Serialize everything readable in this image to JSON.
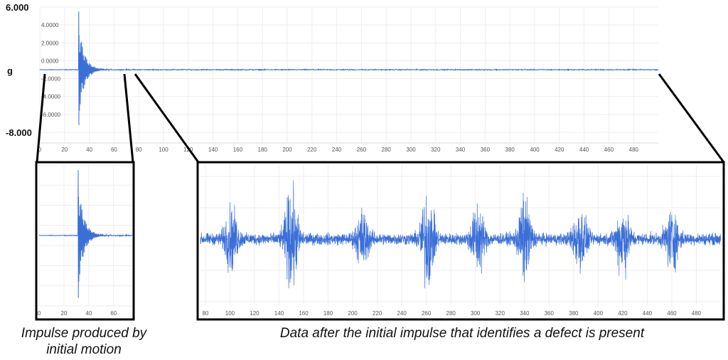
{
  "chart_data": [
    {
      "id": "main",
      "type": "line",
      "ylabel": "g",
      "ylim": [
        -8.0,
        6.0
      ],
      "xlim": [
        0,
        500
      ],
      "x_ticks": [
        0,
        20,
        40,
        60,
        80,
        100,
        120,
        140,
        160,
        180,
        200,
        220,
        240,
        260,
        280,
        300,
        320,
        340,
        360,
        380,
        400,
        420,
        440,
        460,
        480
      ],
      "y_ticks": [
        {
          "value": 6.0,
          "label": "6.000",
          "bold": true
        },
        {
          "value": 4.0,
          "label": "4.0000",
          "bold": false
        },
        {
          "value": 2.0,
          "label": "2.0000",
          "bold": false
        },
        {
          "value": 0.0,
          "label": "0.0000",
          "bold": false
        },
        {
          "value": -2.0,
          "label": "-2.0000",
          "bold": false
        },
        {
          "value": -4.0,
          "label": "-4.0000",
          "bold": false
        },
        {
          "value": -6.0,
          "label": "-6.0000",
          "bold": false
        },
        {
          "value": -8.0,
          "label": "-8.000",
          "bold": true
        }
      ],
      "baseline": -1.0,
      "impulse": {
        "x": 31.5,
        "peak_max": 5.5,
        "peak_min": -7.2
      },
      "grid": true,
      "line_color": "#3b6fd8"
    },
    {
      "id": "zoom_impulse",
      "type": "line",
      "xlim": [
        0,
        75
      ],
      "x_ticks": [
        0,
        20,
        40,
        60
      ],
      "line_color": "#3b6fd8"
    },
    {
      "id": "zoom_defect",
      "type": "line",
      "xlim": [
        76,
        500
      ],
      "x_ticks": [
        80,
        100,
        120,
        140,
        160,
        180,
        200,
        220,
        240,
        260,
        280,
        300,
        320,
        340,
        360,
        380,
        400,
        420,
        440,
        460,
        480
      ],
      "burst_centers": [
        101,
        150,
        208,
        261,
        302,
        340,
        385,
        420,
        460
      ],
      "line_color": "#3b6fd8"
    }
  ],
  "captions": {
    "left": "Impulse produced by initial motion",
    "right": "Data after the initial impulse that identifies a defect is present"
  }
}
